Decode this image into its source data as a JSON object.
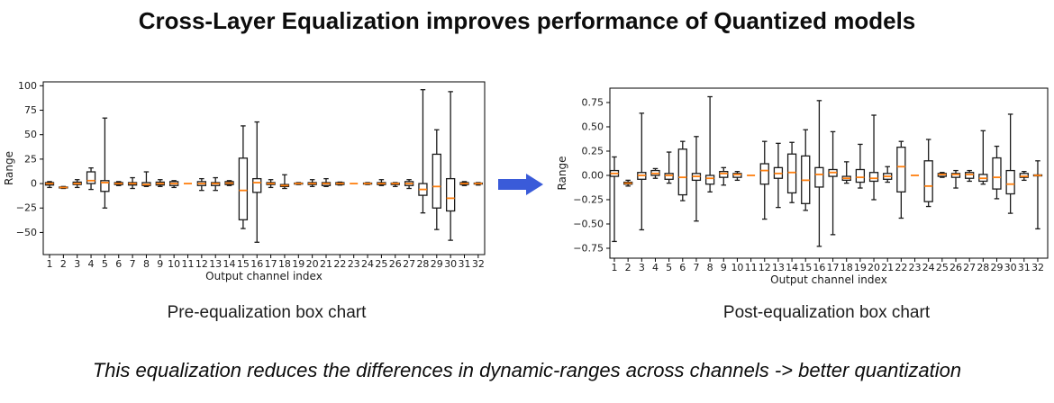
{
  "page": {
    "title": "Cross-Layer Equalization improves performance of Quantized models",
    "footnote": "This equalization reduces the differences in dynamic-ranges across channels -> better quantization",
    "arrow_color": "#3a5bd9"
  },
  "captions": {
    "pre": "Pre-equalization box chart",
    "post": "Post-equalization box chart"
  },
  "chart_data": [
    {
      "type": "box",
      "title": "",
      "xlabel": "Output channel index",
      "ylabel": "Range",
      "ylim": [
        -72.6,
        104
      ],
      "yticks": [
        100,
        75,
        50,
        25,
        0,
        -25,
        -50
      ],
      "ytick_labels": [
        "100",
        "75",
        "50",
        "25",
        "0",
        "−25",
        "−50"
      ],
      "categories": [
        "1",
        "2",
        "3",
        "4",
        "5",
        "6",
        "7",
        "8",
        "9",
        "10",
        "11",
        "12",
        "13",
        "14",
        "15",
        "16",
        "17",
        "18",
        "19",
        "20",
        "21",
        "22",
        "23",
        "24",
        "25",
        "26",
        "27",
        "28",
        "29",
        "30",
        "31",
        "32"
      ],
      "grid": false,
      "legend": "none",
      "median_color": "#ff7f0e",
      "box_color": "#1a1a1a",
      "boxes": [
        [
          -4,
          -1.5,
          0,
          1,
          2
        ],
        [
          -5,
          -4.5,
          -4,
          -3.5,
          -3
        ],
        [
          -4,
          -1,
          0,
          1.5,
          4
        ],
        [
          -6,
          0,
          3,
          12,
          16
        ],
        [
          -25,
          -8,
          1,
          3,
          67
        ],
        [
          -2,
          -1,
          0,
          1,
          2
        ],
        [
          -5,
          -1.5,
          0,
          1,
          6
        ],
        [
          -3,
          -2,
          -1,
          1,
          12
        ],
        [
          -3,
          -1.5,
          0,
          1.5,
          4
        ],
        [
          -4,
          -2,
          0,
          2,
          3
        ],
        [
          0,
          0,
          0,
          0,
          0
        ],
        [
          -7,
          -2,
          0,
          2,
          5
        ],
        [
          -7,
          -2,
          0,
          1,
          6
        ],
        [
          -2,
          -1,
          0.5,
          2,
          3
        ],
        [
          -46,
          -37,
          -7,
          26,
          59
        ],
        [
          -60,
          -9,
          1,
          5,
          63
        ],
        [
          -4,
          -1,
          0,
          1,
          4
        ],
        [
          -5,
          -3,
          -2,
          -1,
          9
        ],
        [
          -1,
          -0.5,
          0,
          0.5,
          1
        ],
        [
          -3,
          -1,
          0,
          1,
          4
        ],
        [
          -3,
          -2,
          0,
          1,
          5
        ],
        [
          -1.5,
          -1,
          0,
          1,
          1.5
        ],
        [
          0,
          0,
          0,
          0,
          0
        ],
        [
          -1,
          -0.5,
          0,
          0.5,
          1
        ],
        [
          -2,
          -1,
          0,
          1,
          4
        ],
        [
          -3,
          -1,
          0,
          0.5,
          1
        ],
        [
          -5,
          -2,
          0,
          2,
          4
        ],
        [
          -30,
          -12,
          -6,
          0,
          96
        ],
        [
          -47,
          -25,
          -3,
          30,
          55
        ],
        [
          -58,
          -28,
          -15,
          5,
          94
        ],
        [
          -2,
          -1,
          0,
          1,
          2
        ],
        [
          -1.5,
          -0.5,
          0,
          0.5,
          1
        ]
      ]
    },
    {
      "type": "box",
      "title": "",
      "xlabel": "Output channel index",
      "ylabel": "Range",
      "ylim": [
        -0.852,
        0.898
      ],
      "yticks": [
        0.75,
        0.5,
        0.25,
        0.0,
        -0.25,
        -0.5,
        -0.75
      ],
      "ytick_labels": [
        "0.75",
        "0.50",
        "0.25",
        "0.00",
        "−0.25",
        "−0.50",
        "−0.75"
      ],
      "categories": [
        "1",
        "2",
        "3",
        "4",
        "5",
        "6",
        "7",
        "8",
        "9",
        "10",
        "11",
        "12",
        "13",
        "14",
        "15",
        "16",
        "17",
        "18",
        "19",
        "20",
        "21",
        "22",
        "23",
        "24",
        "25",
        "26",
        "27",
        "28",
        "29",
        "30",
        "31",
        "32"
      ],
      "grid": false,
      "legend": "none",
      "median_color": "#ff7f0e",
      "box_color": "#1a1a1a",
      "boxes": [
        [
          -0.68,
          -0.01,
          0.02,
          0.05,
          0.19
        ],
        [
          -0.11,
          -0.09,
          -0.08,
          -0.07,
          -0.05
        ],
        [
          -0.56,
          -0.04,
          0.0,
          0.03,
          0.64
        ],
        [
          -0.03,
          0.0,
          0.02,
          0.05,
          0.07
        ],
        [
          -0.08,
          -0.04,
          0.0,
          0.02,
          0.24
        ],
        [
          -0.26,
          -0.2,
          -0.02,
          0.27,
          0.35
        ],
        [
          -0.47,
          -0.05,
          -0.01,
          0.02,
          0.4
        ],
        [
          -0.17,
          -0.09,
          -0.03,
          0.0,
          0.81
        ],
        [
          -0.1,
          -0.02,
          0.02,
          0.04,
          0.08
        ],
        [
          -0.05,
          -0.02,
          0.01,
          0.02,
          0.04
        ],
        [
          0,
          0,
          0,
          0,
          0
        ],
        [
          -0.45,
          -0.09,
          0.05,
          0.12,
          0.35
        ],
        [
          -0.33,
          -0.03,
          0.02,
          0.08,
          0.33
        ],
        [
          -0.28,
          -0.18,
          0.03,
          0.22,
          0.34
        ],
        [
          -0.36,
          -0.29,
          -0.05,
          0.2,
          0.47
        ],
        [
          -0.73,
          -0.12,
          0.01,
          0.08,
          0.77
        ],
        [
          -0.61,
          -0.01,
          0.03,
          0.06,
          0.45
        ],
        [
          -0.08,
          -0.05,
          -0.03,
          -0.01,
          0.14
        ],
        [
          -0.13,
          -0.07,
          -0.02,
          0.06,
          0.32
        ],
        [
          -0.25,
          -0.06,
          -0.03,
          0.03,
          0.62
        ],
        [
          -0.07,
          -0.04,
          -0.01,
          0.02,
          0.09
        ],
        [
          -0.44,
          -0.17,
          0.09,
          0.29,
          0.35
        ],
        [
          0,
          0,
          0,
          0,
          0
        ],
        [
          -0.32,
          -0.27,
          -0.11,
          0.15,
          0.37
        ],
        [
          -0.02,
          -0.01,
          0.01,
          0.02,
          0.03
        ],
        [
          -0.13,
          -0.02,
          0.01,
          0.02,
          0.05
        ],
        [
          -0.06,
          -0.03,
          0.01,
          0.03,
          0.05
        ],
        [
          -0.09,
          -0.06,
          -0.03,
          0.01,
          0.46
        ],
        [
          -0.24,
          -0.14,
          -0.02,
          0.18,
          0.3
        ],
        [
          -0.39,
          -0.19,
          -0.09,
          0.05,
          0.63
        ],
        [
          -0.05,
          -0.02,
          -0.01,
          0.02,
          0.04
        ],
        [
          -0.55,
          -0.005,
          0.0,
          0.005,
          0.15
        ]
      ]
    }
  ]
}
